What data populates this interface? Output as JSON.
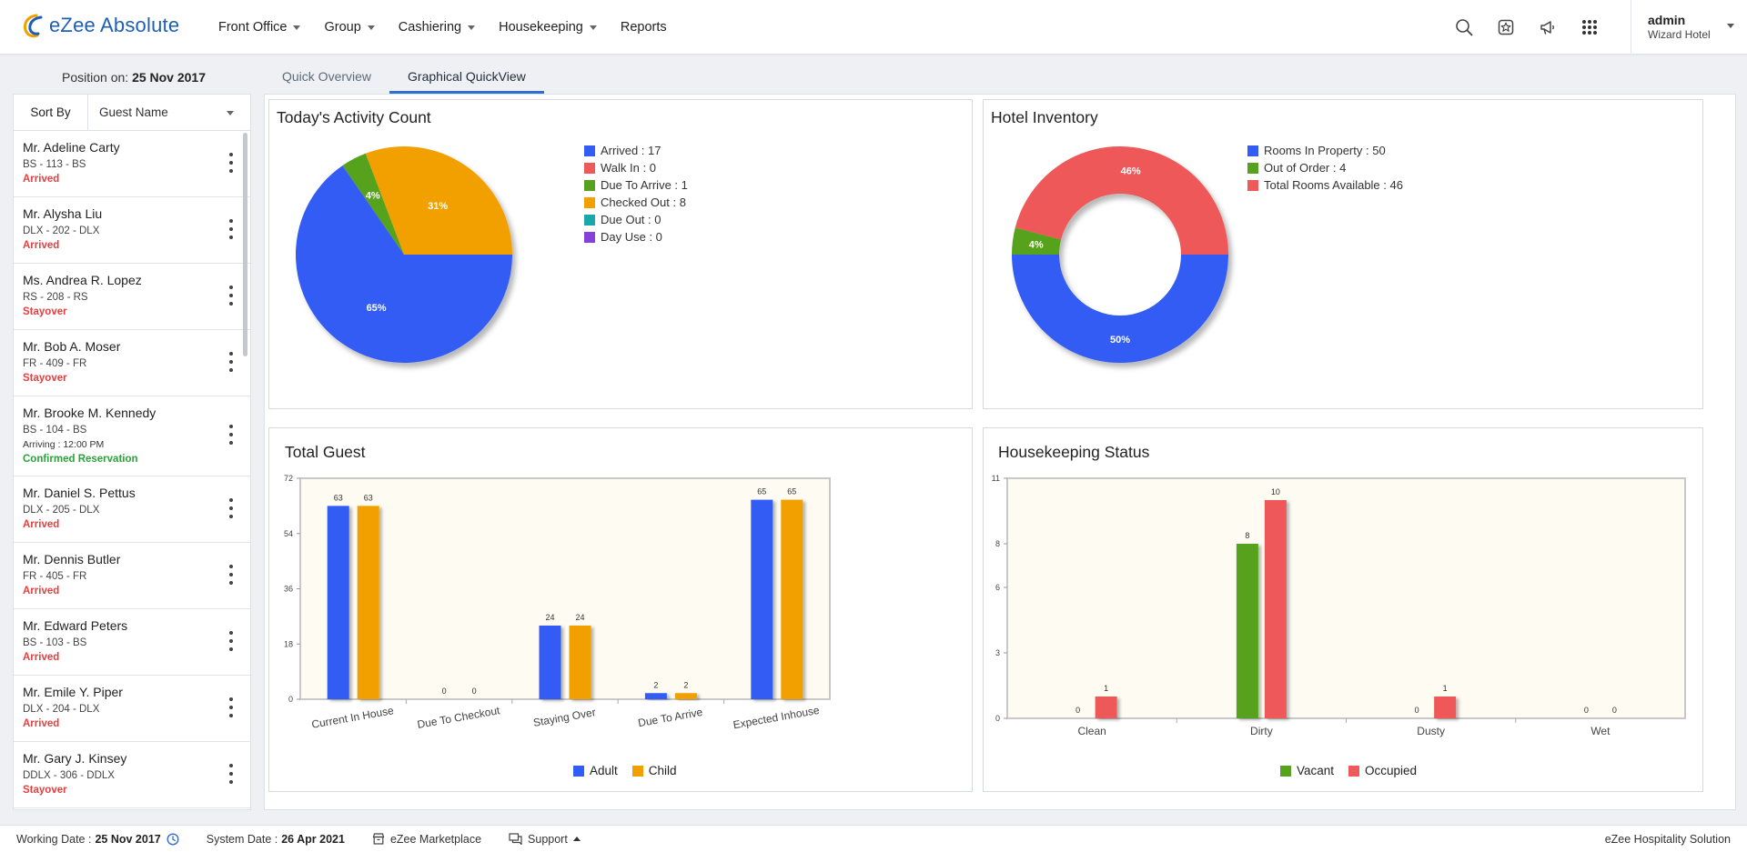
{
  "app": {
    "name": "eZee Absolute",
    "nav": [
      "Front Office",
      "Group",
      "Cashiering",
      "Housekeeping",
      "Reports"
    ],
    "nav_has_caret": [
      true,
      true,
      true,
      true,
      false
    ],
    "icons": [
      "search-icon",
      "star-badge-icon",
      "megaphone-icon",
      "apps-grid-icon"
    ],
    "user": {
      "name": "admin",
      "hotel": "Wizard Hotel"
    }
  },
  "sidebar": {
    "position_label": "Position on:",
    "position_date": "25 Nov 2017",
    "sort_label": "Sort By",
    "sort_value": "Guest Name",
    "guests": [
      {
        "name": "Mr. Adeline Carty",
        "room": "BS - 113 - BS",
        "arriving": "",
        "status": "Arrived",
        "status_type": "red"
      },
      {
        "name": "Mr. Alysha Liu",
        "room": "DLX - 202 - DLX",
        "arriving": "",
        "status": "Arrived",
        "status_type": "red"
      },
      {
        "name": "Ms. Andrea R. Lopez",
        "room": "RS - 208 - RS",
        "arriving": "",
        "status": "Stayover",
        "status_type": "red"
      },
      {
        "name": "Mr. Bob A. Moser",
        "room": "FR - 409 - FR",
        "arriving": "",
        "status": "Stayover",
        "status_type": "red"
      },
      {
        "name": "Mr. Brooke M. Kennedy",
        "room": "BS - 104 - BS",
        "arriving": "Arriving : 12:00 PM",
        "status": "Confirmed Reservation",
        "status_type": "green"
      },
      {
        "name": "Mr. Daniel S. Pettus",
        "room": "DLX - 205 - DLX",
        "arriving": "",
        "status": "Arrived",
        "status_type": "red"
      },
      {
        "name": "Mr. Dennis Butler",
        "room": "FR - 405 - FR",
        "arriving": "",
        "status": "Arrived",
        "status_type": "red"
      },
      {
        "name": "Mr. Edward Peters",
        "room": "BS - 103 - BS",
        "arriving": "",
        "status": "Arrived",
        "status_type": "red"
      },
      {
        "name": "Mr. Emile Y. Piper",
        "room": "DLX - 204 - DLX",
        "arriving": "",
        "status": "Arrived",
        "status_type": "red"
      },
      {
        "name": "Mr. Gary J. Kinsey",
        "room": "DDLX - 306 - DDLX",
        "arriving": "",
        "status": "Stayover",
        "status_type": "red"
      }
    ]
  },
  "tabs": [
    {
      "label": "Quick Overview",
      "active": false
    },
    {
      "label": "Graphical QuickView",
      "active": true
    }
  ],
  "colors": {
    "blue": "#335cf4",
    "red": "#ee5959",
    "green": "#56a21e",
    "orange": "#f2a000",
    "teal": "#1aa7a7",
    "purple": "#8741d8",
    "plot_bg": "#fdfbf2"
  },
  "footer": {
    "working_label": "Working Date :",
    "working_date": "25 Nov 2017",
    "system_label": "System Date :",
    "system_date": "26 Apr 2021",
    "marketplace": "eZee Marketplace",
    "support": "Support",
    "right": "eZee Hospitality Solution"
  },
  "chart_data": [
    {
      "id": "activity",
      "type": "pie",
      "title": "Today's Activity Count",
      "legend": [
        {
          "label": "Arrived : 17",
          "color": "#335cf4"
        },
        {
          "label": "Walk In : 0",
          "color": "#ee5959"
        },
        {
          "label": "Due To Arrive : 1",
          "color": "#56a21e"
        },
        {
          "label": "Checked Out : 8",
          "color": "#f2a000"
        },
        {
          "label": "Due Out : 0",
          "color": "#1aa7a7"
        },
        {
          "label": "Day Use : 0",
          "color": "#8741d8"
        }
      ],
      "slices": [
        {
          "name": "Arrived",
          "value": 17,
          "pct": "65%",
          "color": "#335cf4"
        },
        {
          "name": "Due To Arrive",
          "value": 1,
          "pct": "4%",
          "color": "#56a21e"
        },
        {
          "name": "Checked Out",
          "value": 8,
          "pct": "31%",
          "color": "#f2a000"
        }
      ]
    },
    {
      "id": "inventory",
      "type": "pie",
      "donut": true,
      "title": "Hotel Inventory",
      "legend": [
        {
          "label": "Rooms In Property : 50",
          "color": "#335cf4"
        },
        {
          "label": "Out of Order : 4",
          "color": "#56a21e"
        },
        {
          "label": "Total Rooms Available : 46",
          "color": "#ee5959"
        }
      ],
      "slices": [
        {
          "name": "Rooms In Property",
          "value": 50,
          "pct": "50%",
          "color": "#335cf4"
        },
        {
          "name": "Out of Order",
          "value": 4,
          "pct": "4%",
          "color": "#56a21e"
        },
        {
          "name": "Total Rooms Available",
          "value": 46,
          "pct": "46%",
          "color": "#ee5959"
        }
      ]
    },
    {
      "id": "guest",
      "type": "bar",
      "title": "Total Guest",
      "categories": [
        "Current In House",
        "Due To Checkout",
        "Staying Over",
        "Due To Arrive",
        "Expected Inhouse"
      ],
      "series": [
        {
          "name": "Adult",
          "values": [
            63,
            0,
            24,
            2,
            65
          ],
          "color": "#335cf4"
        },
        {
          "name": "Child",
          "values": [
            63,
            0,
            24,
            2,
            65
          ],
          "color": "#f2a000"
        }
      ],
      "yticks": [
        "72",
        "54",
        "36",
        "18",
        "0"
      ],
      "ylim": [
        0,
        72
      ]
    },
    {
      "id": "housekeeping",
      "type": "bar",
      "title": "Housekeeping Status",
      "categories": [
        "Clean",
        "Dirty",
        "Dusty",
        "Wet"
      ],
      "series": [
        {
          "name": "Vacant",
          "values": [
            0,
            8,
            0,
            0
          ],
          "color": "#56a21e"
        },
        {
          "name": "Occupied",
          "values": [
            1,
            10,
            1,
            0
          ],
          "color": "#ee5959"
        }
      ],
      "yticks": [
        "11",
        "8",
        "6",
        "3",
        "0"
      ],
      "ylim": [
        0,
        11
      ]
    }
  ]
}
